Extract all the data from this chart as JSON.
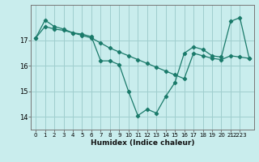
{
  "xlabel": "Humidex (Indice chaleur)",
  "background_color": "#c9eded",
  "line_color": "#1a7a6a",
  "grid_color": "#9fcece",
  "x_values": [
    0,
    1,
    2,
    3,
    4,
    5,
    6,
    7,
    8,
    9,
    10,
    11,
    12,
    13,
    14,
    15,
    16,
    17,
    18,
    19,
    20,
    21,
    22,
    23
  ],
  "line1_y": [
    17.1,
    17.8,
    17.55,
    17.45,
    17.3,
    17.25,
    17.15,
    16.2,
    16.2,
    16.05,
    15.0,
    14.05,
    14.3,
    14.15,
    14.8,
    15.35,
    16.5,
    16.75,
    16.65,
    16.4,
    16.35,
    17.75,
    17.9,
    16.3
  ],
  "line2_y": [
    17.1,
    17.55,
    17.45,
    17.4,
    17.3,
    17.2,
    17.1,
    16.9,
    16.7,
    16.55,
    16.4,
    16.25,
    16.1,
    15.95,
    15.8,
    15.65,
    15.5,
    16.5,
    16.4,
    16.3,
    16.25,
    16.4,
    16.35,
    16.3
  ],
  "yticks": [
    14,
    15,
    16,
    17
  ],
  "xtick_labels": [
    "0",
    "1",
    "2",
    "3",
    "4",
    "5",
    "6",
    "7",
    "8",
    "9",
    "10",
    "11",
    "12",
    "13",
    "14",
    "15",
    "16",
    "17",
    "18",
    "19",
    "20",
    "21",
    "2223"
  ],
  "xticks": [
    0,
    1,
    2,
    3,
    4,
    5,
    6,
    7,
    8,
    9,
    10,
    11,
    12,
    13,
    14,
    15,
    16,
    17,
    18,
    19,
    20,
    21,
    22
  ],
  "ylim": [
    13.5,
    18.4
  ],
  "xlim": [
    -0.5,
    23.5
  ]
}
